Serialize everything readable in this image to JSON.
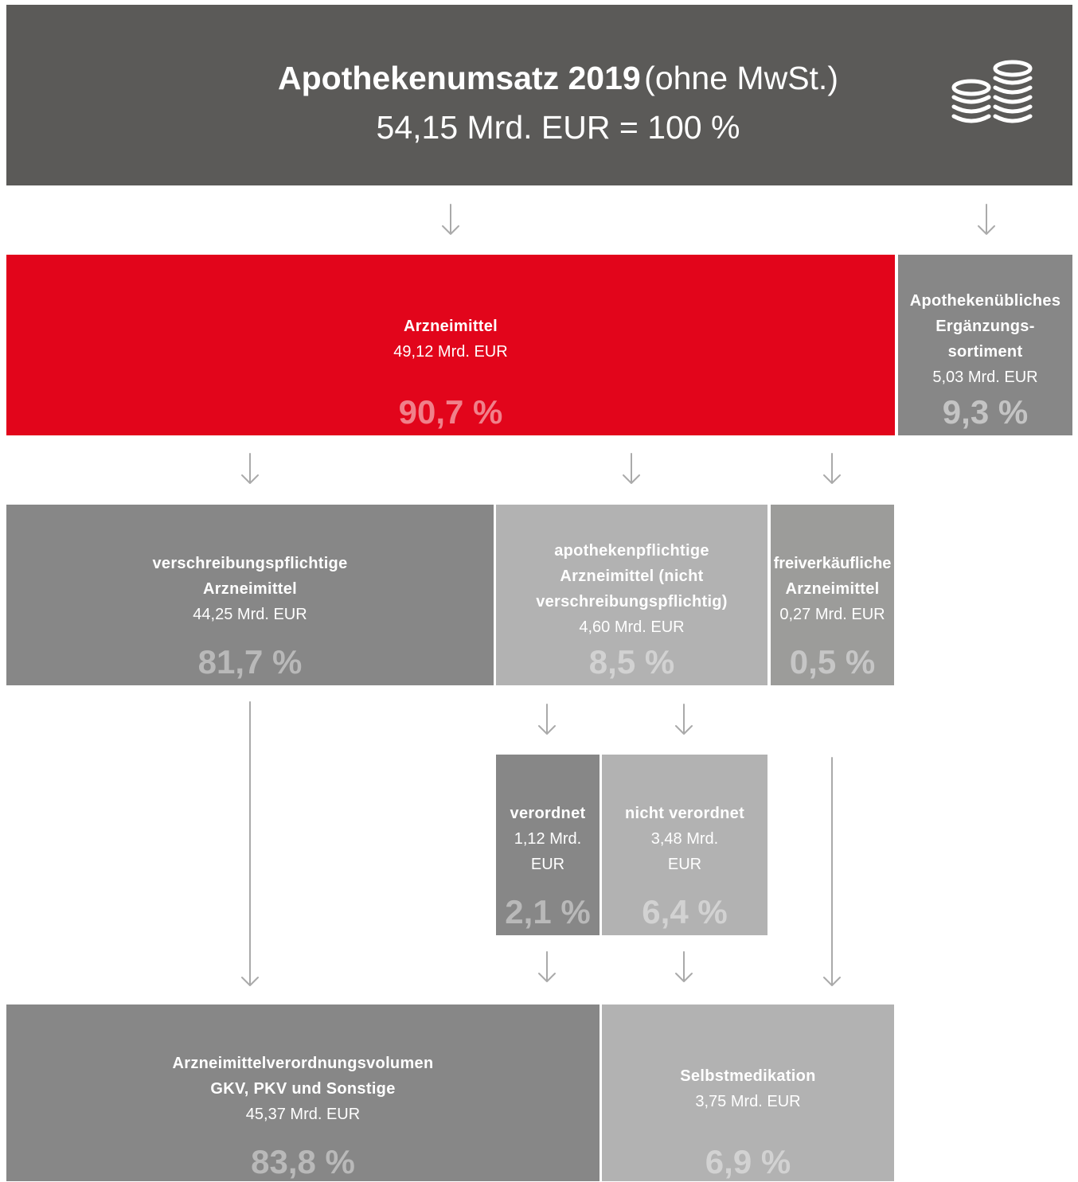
{
  "header": {
    "title": "Apothekenumsatz 2019",
    "subtitle": "(ohne MwSt.)",
    "total": "54,15 Mrd. EUR = 100 %",
    "icon": "coins-icon"
  },
  "colors": {
    "header": "#5b5a58",
    "red": "#e2051b",
    "dark_gray": "#878787",
    "mid_gray": "#9c9c9a",
    "light_gray": "#b2b2b2",
    "arrow": "#aaaaaa"
  },
  "nodes": {
    "arzneimittel": {
      "label": "Arzneimittel",
      "amount": "49,12 Mrd. EUR",
      "percent": "90,7 %"
    },
    "ergaenzung": {
      "label_lines": [
        "Apothekenübliches",
        "Ergänzungs-",
        "sortiment"
      ],
      "amount": "5,03 Mrd. EUR",
      "percent": "9,3 %"
    },
    "rx": {
      "label_lines": [
        "verschreibungspflichtige",
        "Arzneimittel"
      ],
      "amount": "44,25 Mrd. EUR",
      "percent": "81,7 %"
    },
    "otc": {
      "label_lines": [
        "apothekenpflichtige",
        "Arzneimittel (nicht",
        "verschreibungspflichtig)"
      ],
      "amount": "4,60 Mrd. EUR",
      "percent": "8,5 %"
    },
    "frei": {
      "label_lines": [
        "freiverkäufliche",
        "Arzneimittel"
      ],
      "amount": "0,27 Mrd. EUR",
      "percent": "0,5 %"
    },
    "verordnet": {
      "label": "verordnet",
      "amount_lines": [
        "1,12 Mrd.",
        "EUR"
      ],
      "percent": "2,1 %"
    },
    "nicht_verordnet": {
      "label": "nicht verordnet",
      "amount_lines": [
        "3,48 Mrd.",
        "EUR"
      ],
      "percent": "6,4 %"
    },
    "volumen": {
      "label_lines": [
        "Arzneimittelverordnungsvolumen",
        "GKV, PKV und Sonstige"
      ],
      "amount": "45,37 Mrd. EUR",
      "percent": "83,8 %"
    },
    "selbst": {
      "label": "Selbstmedikation",
      "amount": "3,75 Mrd. EUR",
      "percent": "6,9 %"
    }
  }
}
